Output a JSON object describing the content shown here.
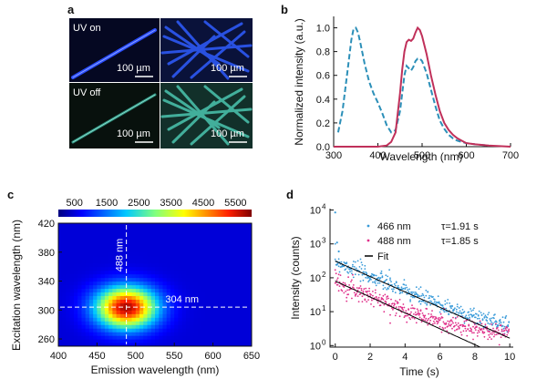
{
  "panels": {
    "a": {
      "label": "a",
      "tags": {
        "uv_on": "UV on",
        "uv_off": "UV off"
      },
      "scale_bars": [
        "100 µm",
        "100 µm",
        "100 µm",
        "100 µm"
      ],
      "colors": {
        "uv_on_bg": "#060a22",
        "uv_on_fiber": "#2a4cff",
        "uv_off_bg": "#0a1410",
        "uv_off_fiber": "#3fbfae"
      }
    },
    "b": {
      "label": "b"
    },
    "c": {
      "label": "c"
    },
    "d": {
      "label": "d"
    }
  },
  "chart_data": [
    {
      "id": "b",
      "type": "line",
      "xlabel": "Wavelength (nm)",
      "ylabel": "Normalized intensity (a.u.)",
      "xlim": [
        300,
        700
      ],
      "ylim": [
        0,
        1.05
      ],
      "xticks": [
        300,
        400,
        500,
        600,
        700
      ],
      "yticks": [
        0.0,
        0.2,
        0.4,
        0.6,
        0.8,
        1.0
      ],
      "ytick_labels": [
        "0.0",
        "0.2",
        "0.4",
        "0.6",
        "0.8",
        "1.0"
      ],
      "series": [
        {
          "name": "excitation",
          "style": "dashed",
          "color": "#2b8fb8",
          "x": [
            310,
            320,
            330,
            340,
            345,
            350,
            355,
            360,
            370,
            380,
            390,
            400,
            410,
            420,
            430,
            440,
            450,
            460,
            465,
            470,
            475,
            480,
            485,
            490,
            495,
            500,
            510,
            520,
            530,
            540,
            550,
            560,
            570,
            580,
            590,
            600,
            620,
            650
          ],
          "y": [
            0.12,
            0.3,
            0.6,
            0.9,
            0.99,
            1.0,
            0.96,
            0.88,
            0.7,
            0.55,
            0.45,
            0.37,
            0.28,
            0.18,
            0.12,
            0.14,
            0.3,
            0.6,
            0.68,
            0.66,
            0.64,
            0.67,
            0.72,
            0.74,
            0.74,
            0.72,
            0.62,
            0.48,
            0.34,
            0.22,
            0.15,
            0.1,
            0.07,
            0.05,
            0.04,
            0.03,
            0.02,
            0.01
          ]
        },
        {
          "name": "emission",
          "style": "solid",
          "color": "#c0305a",
          "x": [
            300,
            400,
            420,
            430,
            440,
            450,
            455,
            460,
            465,
            470,
            475,
            480,
            485,
            490,
            495,
            500,
            510,
            520,
            530,
            540,
            550,
            560,
            570,
            580,
            590,
            600,
            620,
            650,
            700
          ],
          "y": [
            0.0,
            0.0,
            0.01,
            0.04,
            0.12,
            0.45,
            0.65,
            0.8,
            0.88,
            0.9,
            0.89,
            0.91,
            0.96,
            1.0,
            0.98,
            0.93,
            0.78,
            0.6,
            0.44,
            0.3,
            0.2,
            0.14,
            0.1,
            0.07,
            0.05,
            0.03,
            0.02,
            0.01,
            0.0
          ]
        }
      ]
    },
    {
      "id": "c",
      "type": "heatmap",
      "xlabel": "Emission wavelength (nm)",
      "ylabel": "Excitation wavelength (nm)",
      "xlim": [
        400,
        650
      ],
      "ylim": [
        250,
        420
      ],
      "xticks": [
        400,
        450,
        500,
        550,
        600,
        650
      ],
      "yticks": [
        260,
        300,
        340,
        380,
        420
      ],
      "colorbar_ticks": [
        500,
        1500,
        2500,
        3500,
        4500,
        5500
      ],
      "colorbar_range": [
        0,
        6000
      ],
      "peak": {
        "emission": 488,
        "excitation": 304,
        "intensity": 5800
      },
      "spread": {
        "emission": 38,
        "excitation": 28
      },
      "background": 500,
      "annotations": [
        "488 nm",
        "304 nm"
      ]
    },
    {
      "id": "d",
      "type": "scatter",
      "xlabel": "Time (s)",
      "ylabel": "Intensity (counts)",
      "yscale": "log",
      "xlim": [
        -0.3,
        10.2
      ],
      "ylim": [
        0.9,
        11000
      ],
      "xticks": [
        0,
        2,
        4,
        6,
        8,
        10
      ],
      "yticks": [
        1,
        10,
        100,
        1000,
        10000
      ],
      "ytick_labels": [
        [
          "10",
          "0"
        ],
        [
          "10",
          "1"
        ],
        [
          "10",
          "2"
        ],
        [
          "10",
          "3"
        ],
        [
          "10",
          "4"
        ]
      ],
      "legend": [
        "466 nm",
        "488 nm",
        "Fit"
      ],
      "tau_labels": [
        "τ=1.91 s",
        "τ=1.85 s"
      ],
      "series": [
        {
          "name": "466 nm",
          "tau": 1.91,
          "amplitude": 310,
          "floor": 2.5,
          "color": "#3a9bd9"
        },
        {
          "name": "488 nm",
          "tau": 1.85,
          "amplitude": 80,
          "floor": 2.0,
          "color": "#e0308a"
        }
      ],
      "fit": {
        "color": "#000000"
      },
      "outliers": [
        {
          "t": 0.0,
          "y": 8500
        },
        {
          "t": 0.1,
          "y": 1100
        },
        {
          "t": 0.2,
          "y": 600
        }
      ]
    }
  ]
}
